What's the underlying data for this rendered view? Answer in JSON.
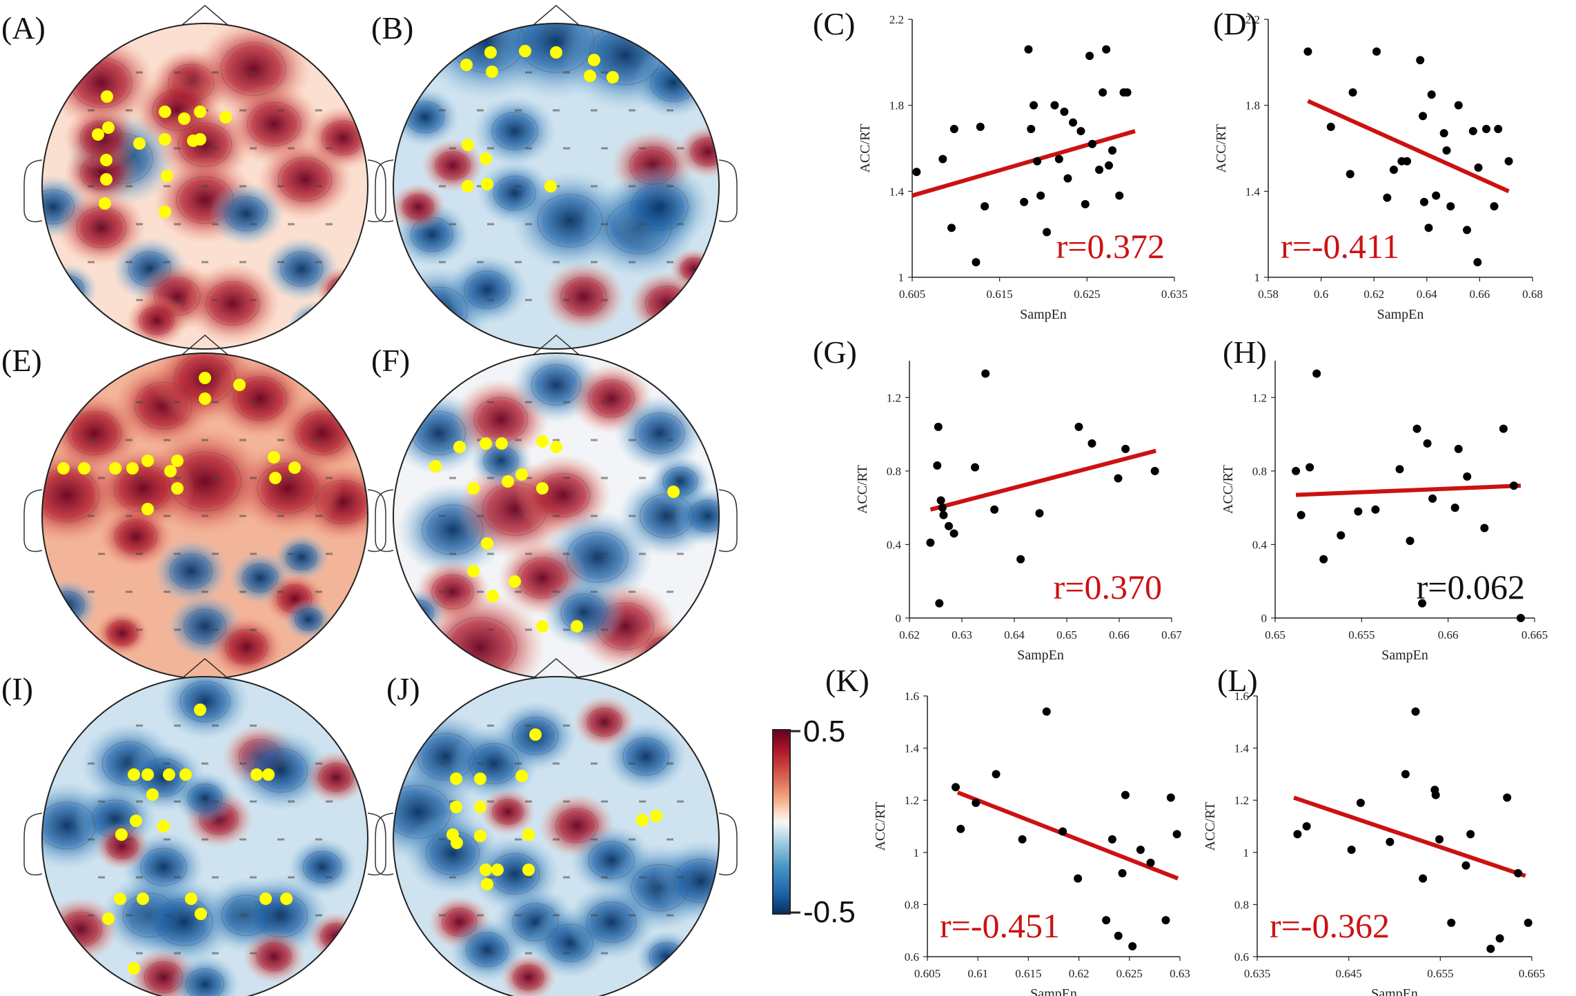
{
  "panel_labels": {
    "A": "(A)",
    "B": "(B)",
    "C": "(C)",
    "D": "(D)",
    "E": "(E)",
    "F": "(F)",
    "G": "(G)",
    "H": "(H)",
    "I": "(I)",
    "J": "(J)",
    "K": "(K)",
    "L": "(L)"
  },
  "colorbar": {
    "max_label": "0.5",
    "min_label": "-0.5",
    "range": [
      -0.5,
      0.5
    ],
    "colors": [
      "#053061",
      "#2166ac",
      "#4393c3",
      "#92c5de",
      "#d1e5f0",
      "#f7f7f7",
      "#fddbc7",
      "#f4a582",
      "#d6604d",
      "#b2182b",
      "#67001f"
    ]
  },
  "colors": {
    "marker": "#ffff00",
    "fit": "#cc1111",
    "point": "#000000"
  },
  "topomaps": [
    {
      "id": "A",
      "mean": 0.08,
      "markers": 16
    },
    {
      "id": "B",
      "mean": -0.14,
      "markers": 13
    },
    {
      "id": "E",
      "mean": 0.17,
      "markers": 15
    },
    {
      "id": "F",
      "mean": -0.03,
      "markers": 17
    },
    {
      "id": "I",
      "mean": -0.15,
      "markers": 19
    },
    {
      "id": "J",
      "mean": -0.15,
      "markers": 16
    }
  ],
  "chart_data": [
    {
      "id": "C",
      "type": "scatter",
      "xlabel": "SampEn",
      "ylabel": "ACC/RT",
      "xlim": [
        0.605,
        0.635
      ],
      "ylim": [
        1,
        2.2
      ],
      "xticks": [
        "0.605",
        "0.615",
        "0.625",
        "0.635"
      ],
      "yticks": [
        "1",
        "1.4",
        "1.8",
        "2.2"
      ],
      "annotation": "r=0.372",
      "annotation_color": "#cc1111",
      "annotation_pos": "bottom-right",
      "fit": [
        [
          0.605,
          1.38
        ],
        [
          0.6305,
          1.68
        ]
      ],
      "x": [
        0.6055,
        0.6085,
        0.6095,
        0.6098,
        0.6123,
        0.6128,
        0.6133,
        0.6178,
        0.6183,
        0.6186,
        0.6189,
        0.6193,
        0.6197,
        0.6204,
        0.6213,
        0.6218,
        0.6224,
        0.6228,
        0.6234,
        0.6243,
        0.6248,
        0.6253,
        0.6256,
        0.6264,
        0.6268,
        0.6272,
        0.6275,
        0.6279,
        0.6287,
        0.6292,
        0.6296
      ],
      "y": [
        1.49,
        1.55,
        1.23,
        1.69,
        1.07,
        1.7,
        1.33,
        1.35,
        2.06,
        1.69,
        1.8,
        1.54,
        1.38,
        1.21,
        1.8,
        1.55,
        1.77,
        1.46,
        1.72,
        1.68,
        1.34,
        2.03,
        1.62,
        1.5,
        1.86,
        2.06,
        1.52,
        1.59,
        1.38,
        1.86,
        1.86
      ]
    },
    {
      "id": "D",
      "type": "scatter",
      "xlabel": "SampEn",
      "ylabel": "ACC/RT",
      "xlim": [
        0.58,
        0.68
      ],
      "ylim": [
        1,
        2.2
      ],
      "xticks": [
        "0.58",
        "0.6",
        "0.62",
        "0.64",
        "0.66",
        "0.68"
      ],
      "yticks": [
        "1",
        "1.4",
        "1.8",
        "2.2"
      ],
      "annotation": "r=-0.411",
      "annotation_color": "#cc1111",
      "annotation_pos": "bottom-left",
      "fit": [
        [
          0.595,
          1.82
        ],
        [
          0.671,
          1.4
        ]
      ],
      "x": [
        0.595,
        0.6037,
        0.611,
        0.612,
        0.621,
        0.625,
        0.6275,
        0.6305,
        0.6325,
        0.6375,
        0.6385,
        0.639,
        0.6407,
        0.6418,
        0.6435,
        0.6465,
        0.6475,
        0.649,
        0.652,
        0.6552,
        0.6575,
        0.6592,
        0.6595,
        0.6625,
        0.6655,
        0.667,
        0.671
      ],
      "y": [
        2.05,
        1.7,
        1.48,
        1.86,
        2.05,
        1.37,
        1.5,
        1.54,
        1.54,
        2.01,
        1.75,
        1.35,
        1.23,
        1.85,
        1.38,
        1.67,
        1.59,
        1.33,
        1.8,
        1.22,
        1.68,
        1.07,
        1.51,
        1.69,
        1.33,
        1.69,
        1.54
      ]
    },
    {
      "id": "G",
      "type": "scatter",
      "xlabel": "SampEn",
      "ylabel": "ACC/RT",
      "xlim": [
        0.62,
        0.67
      ],
      "ylim": [
        0,
        1.4
      ],
      "xticks": [
        "0.62",
        "0.63",
        "0.64",
        "0.65",
        "0.66",
        "0.67"
      ],
      "yticks": [
        "0",
        "0.4",
        "0.8",
        "1.2"
      ],
      "annotation": "r=0.370",
      "annotation_color": "#cc1111",
      "annotation_pos": "bottom-right",
      "fit": [
        [
          0.624,
          0.59
        ],
        [
          0.667,
          0.91
        ]
      ],
      "x": [
        0.624,
        0.6253,
        0.6255,
        0.6257,
        0.626,
        0.6263,
        0.6265,
        0.6275,
        0.6285,
        0.6325,
        0.6345,
        0.6362,
        0.6412,
        0.6448,
        0.6523,
        0.6548,
        0.6598,
        0.6612,
        0.6668
      ],
      "y": [
        0.41,
        0.83,
        1.04,
        0.08,
        0.64,
        0.6,
        0.56,
        0.5,
        0.46,
        0.82,
        1.33,
        0.59,
        0.32,
        0.57,
        1.04,
        0.95,
        0.76,
        0.92,
        0.8
      ]
    },
    {
      "id": "H",
      "type": "scatter",
      "xlabel": "SampEn",
      "ylabel": "ACC/RT",
      "xlim": [
        0.65,
        0.665
      ],
      "ylim": [
        0,
        1.4
      ],
      "xticks": [
        "0.65",
        "0.655",
        "0.66",
        "0.665"
      ],
      "yticks": [
        "0",
        "0.4",
        "0.8",
        "1.2"
      ],
      "annotation": "r=0.062",
      "annotation_color": "#111111",
      "annotation_pos": "bottom-right",
      "fit": [
        [
          0.6512,
          0.67
        ],
        [
          0.6642,
          0.72
        ]
      ],
      "x": [
        0.6512,
        0.6515,
        0.652,
        0.6524,
        0.6528,
        0.6538,
        0.6548,
        0.6558,
        0.6572,
        0.6578,
        0.6582,
        0.6585,
        0.6588,
        0.6591,
        0.6604,
        0.6606,
        0.6611,
        0.6621,
        0.6632,
        0.6638,
        0.6642
      ],
      "y": [
        0.8,
        0.56,
        0.82,
        1.33,
        0.32,
        0.45,
        0.58,
        0.59,
        0.81,
        0.42,
        1.03,
        0.08,
        0.95,
        0.65,
        0.6,
        0.92,
        0.77,
        0.49,
        1.03,
        0.72,
        0.0
      ]
    },
    {
      "id": "K",
      "type": "scatter",
      "xlabel": "SampEn",
      "ylabel": "ACC/RT",
      "xlim": [
        0.605,
        0.63
      ],
      "ylim": [
        0.6,
        1.6
      ],
      "xticks": [
        "0.605",
        "0.61",
        "0.615",
        "0.62",
        "0.625",
        "0.63"
      ],
      "yticks": [
        "0.6",
        "0.8",
        "1",
        "1.2",
        "1.4",
        "1.6"
      ],
      "annotation": "r=-0.451",
      "annotation_color": "#cc1111",
      "annotation_pos": "bottom-left",
      "fit": [
        [
          0.608,
          1.23
        ],
        [
          0.6298,
          0.9
        ]
      ],
      "x": [
        0.6078,
        0.6083,
        0.6098,
        0.6118,
        0.6144,
        0.6168,
        0.6184,
        0.6199,
        0.6227,
        0.6233,
        0.6239,
        0.6243,
        0.6246,
        0.6253,
        0.6261,
        0.6271,
        0.6286,
        0.6291,
        0.6297
      ],
      "y": [
        1.25,
        1.09,
        1.19,
        1.3,
        1.05,
        1.54,
        1.08,
        0.9,
        0.74,
        1.05,
        0.68,
        0.92,
        1.22,
        0.64,
        1.01,
        0.96,
        0.74,
        1.21,
        1.07
      ]
    },
    {
      "id": "L",
      "type": "scatter",
      "xlabel": "SampEn",
      "ylabel": "ACC/RT",
      "xlim": [
        0.635,
        0.665
      ],
      "ylim": [
        0.6,
        1.6
      ],
      "xticks": [
        "0.635",
        "0.645",
        "0.655",
        "0.665"
      ],
      "yticks": [
        "0.6",
        "0.8",
        "1",
        "1.2",
        "1.4",
        "1.6"
      ],
      "annotation": "r=-0.362",
      "annotation_color": "#cc1111",
      "annotation_pos": "bottom-left",
      "fit": [
        [
          0.639,
          1.21
        ],
        [
          0.6643,
          0.91
        ]
      ],
      "x": [
        0.6394,
        0.6404,
        0.6453,
        0.6463,
        0.6495,
        0.6512,
        0.6523,
        0.6531,
        0.6544,
        0.6545,
        0.6549,
        0.6562,
        0.6578,
        0.6583,
        0.6605,
        0.6615,
        0.6623,
        0.6635,
        0.6646
      ],
      "y": [
        1.07,
        1.1,
        1.01,
        1.19,
        1.04,
        1.3,
        1.54,
        0.9,
        1.24,
        1.22,
        1.05,
        0.73,
        0.95,
        1.07,
        0.63,
        0.67,
        1.21,
        0.92,
        0.73
      ]
    }
  ]
}
